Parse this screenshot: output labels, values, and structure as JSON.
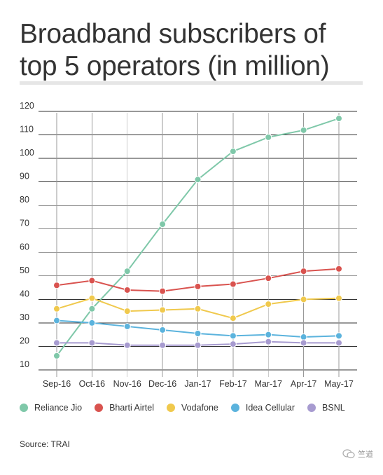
{
  "title": "Broadband subscribers of top 5 operators (in million)",
  "source": "Source: TRAI",
  "watermark_text": "竺道",
  "chart_data": {
    "type": "line",
    "title": "Broadband subscribers of top 5 operators (in million)",
    "xlabel": "",
    "ylabel": "",
    "categories": [
      "Sep-16",
      "Oct-16",
      "Nov-16",
      "Dec-16",
      "Jan-17",
      "Feb-17",
      "Mar-17",
      "Apr-17",
      "May-17"
    ],
    "ylim": [
      10,
      120
    ],
    "yticks": [
      10,
      20,
      30,
      40,
      50,
      60,
      70,
      80,
      90,
      100,
      110,
      120
    ],
    "grid": true,
    "legend_position": "bottom",
    "series": [
      {
        "name": "Reliance Jio",
        "color": "#7fc8a9",
        "values": [
          16,
          36,
          52,
          72,
          91,
          103,
          109,
          112,
          117
        ]
      },
      {
        "name": "Bharti Airtel",
        "color": "#d9534f",
        "values": [
          46,
          48,
          44,
          43.5,
          45.5,
          46.5,
          49,
          52,
          53
        ]
      },
      {
        "name": "Vodafone",
        "color": "#f0c94d",
        "values": [
          36,
          40.5,
          35,
          35.5,
          36,
          32,
          38,
          40,
          40.5
        ]
      },
      {
        "name": "Idea Cellular",
        "color": "#5bb3dd",
        "values": [
          31,
          30,
          28.5,
          27,
          25.5,
          24.5,
          25,
          24,
          24.5
        ]
      },
      {
        "name": "BSNL",
        "color": "#a79bd0",
        "values": [
          21.5,
          21.5,
          20.5,
          20.5,
          20.5,
          21,
          22,
          21.5,
          21.5
        ]
      }
    ]
  }
}
